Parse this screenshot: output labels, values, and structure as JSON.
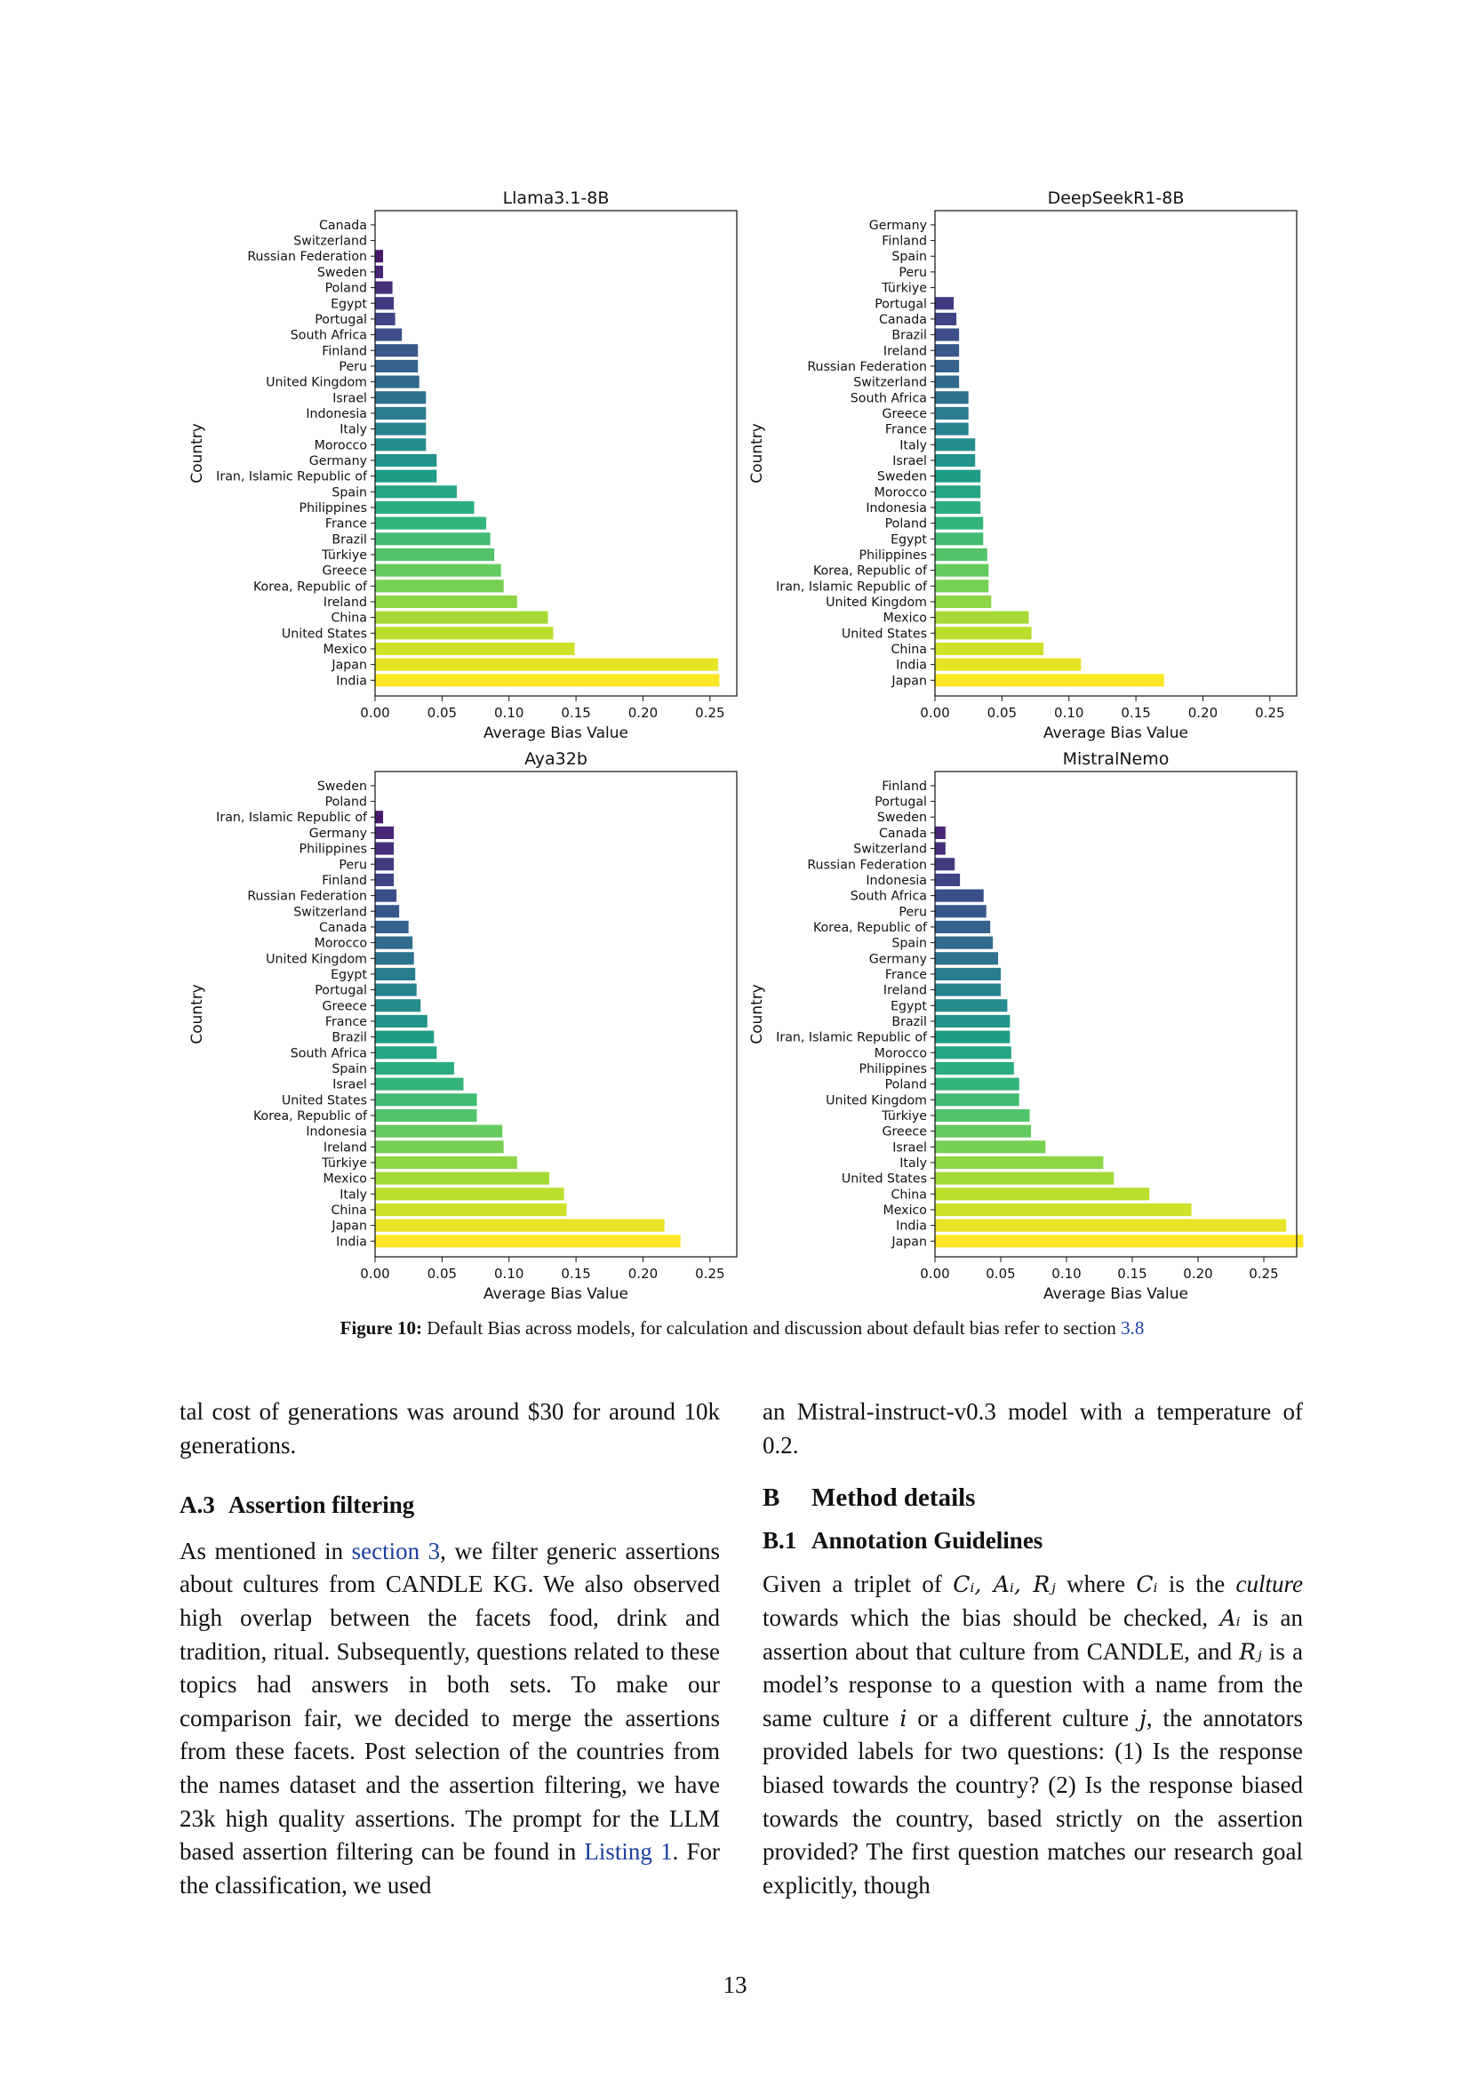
{
  "figure": {
    "charts": [
      {
        "title": "Llama3.1-8B",
        "countries": [
          "Canada",
          "Switzerland",
          "Russian Federation",
          "Sweden",
          "Poland",
          "Egypt",
          "Portugal",
          "South Africa",
          "Finland",
          "Peru",
          "United Kingdom",
          "Israel",
          "Indonesia",
          "Italy",
          "Morocco",
          "Germany",
          "Iran, Islamic Republic of",
          "Spain",
          "Philippines",
          "France",
          "Brazil",
          "Türkiye",
          "Greece",
          "Korea, Republic of",
          "Ireland",
          "China",
          "United States",
          "Mexico",
          "Japan",
          "India"
        ],
        "values": [
          0.0,
          0.0,
          0.006,
          0.006,
          0.013,
          0.014,
          0.015,
          0.02,
          0.032,
          0.032,
          0.033,
          0.038,
          0.038,
          0.038,
          0.038,
          0.046,
          0.046,
          0.061,
          0.074,
          0.083,
          0.086,
          0.089,
          0.094,
          0.096,
          0.106,
          0.129,
          0.133,
          0.149,
          0.256,
          0.257
        ]
      },
      {
        "title": "DeepSeekR1-8B",
        "countries": [
          "Germany",
          "Finland",
          "Spain",
          "Peru",
          "Türkiye",
          "Portugal",
          "Canada",
          "Brazil",
          "Ireland",
          "Russian Federation",
          "Switzerland",
          "South Africa",
          "Greece",
          "France",
          "Italy",
          "Israel",
          "Sweden",
          "Morocco",
          "Indonesia",
          "Poland",
          "Egypt",
          "Philippines",
          "Korea, Republic of",
          "Iran, Islamic Republic of",
          "United Kingdom",
          "Mexico",
          "United States",
          "China",
          "India",
          "Japan"
        ],
        "values": [
          0.0,
          0.0,
          0.0,
          0.0,
          0.0,
          0.014,
          0.016,
          0.018,
          0.018,
          0.018,
          0.018,
          0.025,
          0.025,
          0.025,
          0.03,
          0.03,
          0.034,
          0.034,
          0.034,
          0.036,
          0.036,
          0.039,
          0.04,
          0.04,
          0.042,
          0.07,
          0.072,
          0.081,
          0.109,
          0.171
        ]
      },
      {
        "title": "Aya32b",
        "countries": [
          "Sweden",
          "Poland",
          "Iran, Islamic Republic of",
          "Germany",
          "Philippines",
          "Peru",
          "Finland",
          "Russian Federation",
          "Switzerland",
          "Canada",
          "Morocco",
          "United Kingdom",
          "Egypt",
          "Portugal",
          "Greece",
          "France",
          "Brazil",
          "South Africa",
          "Spain",
          "Israel",
          "United States",
          "Korea, Republic of",
          "Indonesia",
          "Ireland",
          "Türkiye",
          "Mexico",
          "Italy",
          "China",
          "Japan",
          "India"
        ],
        "values": [
          0.0,
          0.0,
          0.006,
          0.014,
          0.014,
          0.014,
          0.014,
          0.016,
          0.018,
          0.025,
          0.028,
          0.029,
          0.03,
          0.031,
          0.034,
          0.039,
          0.044,
          0.046,
          0.059,
          0.066,
          0.076,
          0.076,
          0.095,
          0.096,
          0.106,
          0.13,
          0.141,
          0.143,
          0.216,
          0.228
        ]
      },
      {
        "title": "MistralNemo",
        "countries": [
          "Finland",
          "Portugal",
          "Sweden",
          "Canada",
          "Switzerland",
          "Russian Federation",
          "Indonesia",
          "South Africa",
          "Peru",
          "Korea, Republic of",
          "Spain",
          "Germany",
          "France",
          "Ireland",
          "Egypt",
          "Brazil",
          "Iran, Islamic Republic of",
          "Morocco",
          "Philippines",
          "Poland",
          "United Kingdom",
          "Türkiye",
          "Greece",
          "Israel",
          "Italy",
          "United States",
          "China",
          "Mexico",
          "India",
          "Japan"
        ],
        "values": [
          0.0,
          0.0,
          0.0,
          0.008,
          0.008,
          0.015,
          0.019,
          0.037,
          0.039,
          0.042,
          0.044,
          0.048,
          0.05,
          0.05,
          0.055,
          0.057,
          0.057,
          0.058,
          0.06,
          0.064,
          0.064,
          0.072,
          0.073,
          0.084,
          0.128,
          0.136,
          0.163,
          0.195,
          0.267,
          0.28
        ]
      }
    ],
    "xlabel": "Average Bias Value",
    "ylabel": "Country",
    "xticks": [
      "0.00",
      "0.05",
      "0.10",
      "0.15",
      "0.20",
      "0.25"
    ]
  },
  "chart_data": [
    {
      "type": "bar",
      "orientation": "horizontal",
      "title": "Llama3.1-8B",
      "xlabel": "Average Bias Value",
      "ylabel": "Country",
      "xlim": [
        0,
        0.27
      ],
      "categories": [
        "Canada",
        "Switzerland",
        "Russian Federation",
        "Sweden",
        "Poland",
        "Egypt",
        "Portugal",
        "South Africa",
        "Finland",
        "Peru",
        "United Kingdom",
        "Israel",
        "Indonesia",
        "Italy",
        "Morocco",
        "Germany",
        "Iran, Islamic Republic of",
        "Spain",
        "Philippines",
        "France",
        "Brazil",
        "Türkiye",
        "Greece",
        "Korea, Republic of",
        "Ireland",
        "China",
        "United States",
        "Mexico",
        "Japan",
        "India"
      ],
      "values": [
        0.0,
        0.0,
        0.006,
        0.006,
        0.013,
        0.014,
        0.015,
        0.02,
        0.032,
        0.032,
        0.033,
        0.038,
        0.038,
        0.038,
        0.038,
        0.046,
        0.046,
        0.061,
        0.074,
        0.083,
        0.086,
        0.089,
        0.094,
        0.096,
        0.106,
        0.129,
        0.133,
        0.149,
        0.256,
        0.257
      ]
    },
    {
      "type": "bar",
      "orientation": "horizontal",
      "title": "DeepSeekR1-8B",
      "xlabel": "Average Bias Value",
      "ylabel": "Country",
      "xlim": [
        0,
        0.27
      ],
      "categories": [
        "Germany",
        "Finland",
        "Spain",
        "Peru",
        "Türkiye",
        "Portugal",
        "Canada",
        "Brazil",
        "Ireland",
        "Russian Federation",
        "Switzerland",
        "South Africa",
        "Greece",
        "France",
        "Italy",
        "Israel",
        "Sweden",
        "Morocco",
        "Indonesia",
        "Poland",
        "Egypt",
        "Philippines",
        "Korea, Republic of",
        "Iran, Islamic Republic of",
        "United Kingdom",
        "Mexico",
        "United States",
        "China",
        "India",
        "Japan"
      ],
      "values": [
        0.0,
        0.0,
        0.0,
        0.0,
        0.0,
        0.014,
        0.016,
        0.018,
        0.018,
        0.018,
        0.018,
        0.025,
        0.025,
        0.025,
        0.03,
        0.03,
        0.034,
        0.034,
        0.034,
        0.036,
        0.036,
        0.039,
        0.04,
        0.04,
        0.042,
        0.07,
        0.072,
        0.081,
        0.109,
        0.171
      ]
    },
    {
      "type": "bar",
      "orientation": "horizontal",
      "title": "Aya32b",
      "xlabel": "Average Bias Value",
      "ylabel": "Country",
      "xlim": [
        0,
        0.27
      ],
      "categories": [
        "Sweden",
        "Poland",
        "Iran, Islamic Republic of",
        "Germany",
        "Philippines",
        "Peru",
        "Finland",
        "Russian Federation",
        "Switzerland",
        "Canada",
        "Morocco",
        "United Kingdom",
        "Egypt",
        "Portugal",
        "Greece",
        "France",
        "Brazil",
        "South Africa",
        "Spain",
        "Israel",
        "United States",
        "Korea, Republic of",
        "Indonesia",
        "Ireland",
        "Türkiye",
        "Mexico",
        "Italy",
        "China",
        "Japan",
        "India"
      ],
      "values": [
        0.0,
        0.0,
        0.006,
        0.014,
        0.014,
        0.014,
        0.014,
        0.016,
        0.018,
        0.025,
        0.028,
        0.029,
        0.03,
        0.031,
        0.034,
        0.039,
        0.044,
        0.046,
        0.059,
        0.066,
        0.076,
        0.076,
        0.095,
        0.096,
        0.106,
        0.13,
        0.141,
        0.143,
        0.216,
        0.228
      ]
    },
    {
      "type": "bar",
      "orientation": "horizontal",
      "title": "MistralNemo",
      "xlabel": "Average Bias Value",
      "ylabel": "Country",
      "xlim": [
        0,
        0.275
      ],
      "categories": [
        "Finland",
        "Portugal",
        "Sweden",
        "Canada",
        "Switzerland",
        "Russian Federation",
        "Indonesia",
        "South Africa",
        "Peru",
        "Korea, Republic of",
        "Spain",
        "Germany",
        "France",
        "Ireland",
        "Egypt",
        "Brazil",
        "Iran, Islamic Republic of",
        "Morocco",
        "Philippines",
        "Poland",
        "United Kingdom",
        "Türkiye",
        "Greece",
        "Israel",
        "Italy",
        "United States",
        "China",
        "Mexico",
        "India",
        "Japan"
      ],
      "values": [
        0.0,
        0.0,
        0.0,
        0.008,
        0.008,
        0.015,
        0.019,
        0.037,
        0.039,
        0.042,
        0.044,
        0.048,
        0.05,
        0.05,
        0.055,
        0.057,
        0.057,
        0.058,
        0.06,
        0.064,
        0.064,
        0.072,
        0.073,
        0.084,
        0.128,
        0.136,
        0.163,
        0.195,
        0.267,
        0.28
      ]
    }
  ],
  "caption": {
    "label": "Figure 10:",
    "text": " Default Bias across models, for calculation and discussion about default bias refer to section ",
    "ref": "3.8"
  },
  "left_col": {
    "p1": "tal cost of generations was around $30 for around 10k generations.",
    "heading_num": "A.3",
    "heading_text": "Assertion filtering",
    "p2_a": "As mentioned in ",
    "p2_link": "section 3",
    "p2_b": ", we filter generic assertions about cultures from CANDLE KG. We also observed high overlap between the facets food, drink and tradition, ritual. Subsequently, questions related to these topics had answers in both sets. To make our comparison fair, we decided to merge the assertions from these facets. Post selection of the countries from the names dataset and the assertion filtering, we have 23k high quality assertions. The prompt for the LLM based assertion filtering can be found in ",
    "p2_link2": "Listing 1",
    "p2_c": ". For the classification, we used"
  },
  "right_col": {
    "p1": "an Mistral-instruct-v0.3 model with a temperature of 0.2.",
    "sec_num": "B",
    "sec_text": "Method details",
    "sub_num": "B.1",
    "sub_text": "Annotation Guidelines",
    "p2_a": "Given a triplet of ",
    "m1": "Cᵢ, Aᵢ, Rⱼ",
    "p2_b": " where ",
    "m2": "Cᵢ",
    "p2_c": " is the ",
    "em1": "culture",
    "p2_d": " towards which the bias should be checked, ",
    "m3": "Aᵢ",
    "p2_e": " is an assertion about that culture from CANDLE, and ",
    "m4": "Rⱼ",
    "p2_f": " is a model’s response to a question with a name from the same culture ",
    "m5": "i",
    "p2_g": " or a different culture ",
    "m6": "j",
    "p2_h": ", the annotators provided labels for two questions: (1) Is the response biased towards the country? (2) Is the response biased towards the country, based strictly on the assertion provided? The first question matches our research goal explicitly, though"
  },
  "page_number": "13"
}
